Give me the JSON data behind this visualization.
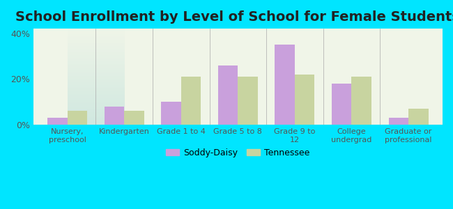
{
  "title": "School Enrollment by Level of School for Female Students",
  "categories": [
    "Nursery,\npreschool",
    "Kindergarten",
    "Grade 1 to 4",
    "Grade 5 to 8",
    "Grade 9 to\n12",
    "College\nundergrad",
    "Graduate or\nprofessional"
  ],
  "soddy_daisy": [
    3,
    8,
    10,
    26,
    35,
    18,
    3
  ],
  "tennessee": [
    6,
    6,
    21,
    21,
    22,
    21,
    7
  ],
  "soddy_color": "#c9a0dc",
  "tennessee_color": "#c8d4a0",
  "background_outer": "#00e5ff",
  "background_inner_top": "#f0f5e8",
  "background_inner_bottom": "#d0e8e0",
  "ylim": [
    0,
    42
  ],
  "yticks": [
    0,
    20,
    40
  ],
  "ytick_labels": [
    "0%",
    "20%",
    "40%"
  ],
  "bar_width": 0.35,
  "title_fontsize": 14,
  "legend_labels": [
    "Soddy-Daisy",
    "Tennessee"
  ]
}
